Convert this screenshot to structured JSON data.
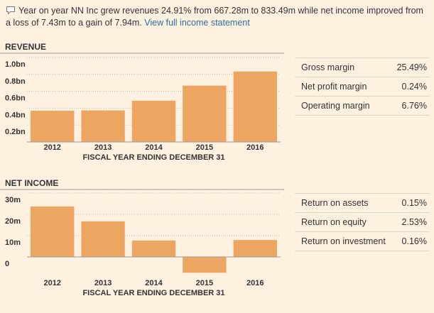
{
  "summary": {
    "text": "Year on year NN Inc grew revenues 24.91% from 667.28m to 833.49m while net income improved from a loss of 7.43m to a gain of 7.94m.",
    "link": "View full income statement"
  },
  "chart_data": [
    {
      "type": "bar",
      "title": "REVENUE",
      "xlabel": "FISCAL YEAR ENDING DECEMBER 31",
      "categories": [
        "2012",
        "2013",
        "2014",
        "2015",
        "2016"
      ],
      "values": [
        0.37,
        0.373,
        0.488,
        0.66728,
        0.83349
      ],
      "color": "#eda661",
      "ylim": [
        0,
        1.0
      ],
      "yticks": [
        {
          "value": 0.2,
          "label": "0.2bn"
        },
        {
          "value": 0.4,
          "label": "0.4bn"
        },
        {
          "value": 0.6,
          "label": "0.6bn"
        },
        {
          "value": 0.8,
          "label": "0.8bn"
        },
        {
          "value": 1.0,
          "label": "1.0bn"
        }
      ],
      "grid": true
    },
    {
      "type": "bar",
      "title": "NET INCOME",
      "xlabel": "FISCAL YEAR ENDING DECEMBER 31",
      "categories": [
        "2012",
        "2013",
        "2014",
        "2015",
        "2016"
      ],
      "values": [
        23.7,
        16.7,
        7.7,
        -7.43,
        7.94
      ],
      "color": "#eda661",
      "ylim": [
        -9,
        30
      ],
      "yticks": [
        0,
        {
          "value": 10,
          "label": "10m"
        },
        {
          "value": 20,
          "label": "20m"
        },
        {
          "value": 30,
          "label": "30m"
        }
      ],
      "grid": true
    }
  ],
  "tables": [
    {
      "rows": [
        [
          "Gross margin",
          "25.49%"
        ],
        [
          "Net profit margin",
          "0.24%"
        ],
        [
          "Operating margin",
          "6.76%"
        ]
      ]
    },
    {
      "rows": [
        [
          "Return on assets",
          "0.15%"
        ],
        [
          "Return on equity",
          "2.53%"
        ],
        [
          "Return on investment",
          "0.16%"
        ]
      ]
    }
  ]
}
